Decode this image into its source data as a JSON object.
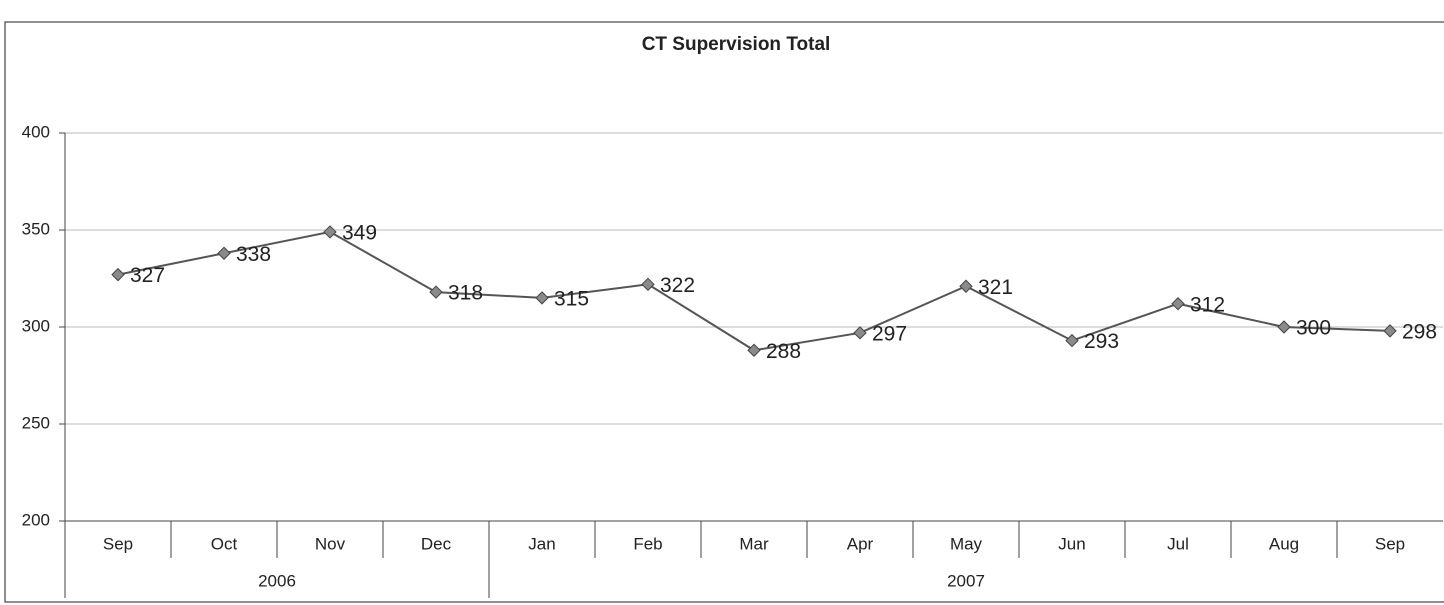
{
  "chart_data": {
    "type": "line",
    "title": "CT Supervision Total",
    "categories": [
      "Sep",
      "Oct",
      "Nov",
      "Dec",
      "Jan",
      "Feb",
      "Mar",
      "Apr",
      "May",
      "Jun",
      "Jul",
      "Aug",
      "Sep"
    ],
    "years": [
      "2006",
      "2006",
      "2006",
      "2006",
      "2007",
      "2007",
      "2007",
      "2007",
      "2007",
      "2007",
      "2007",
      "2007",
      "2007"
    ],
    "series": [
      {
        "name": "CT Supervision Total",
        "color": "#555555",
        "values": [
          327,
          338,
          349,
          318,
          315,
          322,
          288,
          297,
          321,
          293,
          312,
          300,
          298
        ]
      }
    ],
    "ylim": [
      200,
      400
    ],
    "yticks": [
      200,
      250,
      300,
      350,
      400
    ],
    "grid": true
  }
}
